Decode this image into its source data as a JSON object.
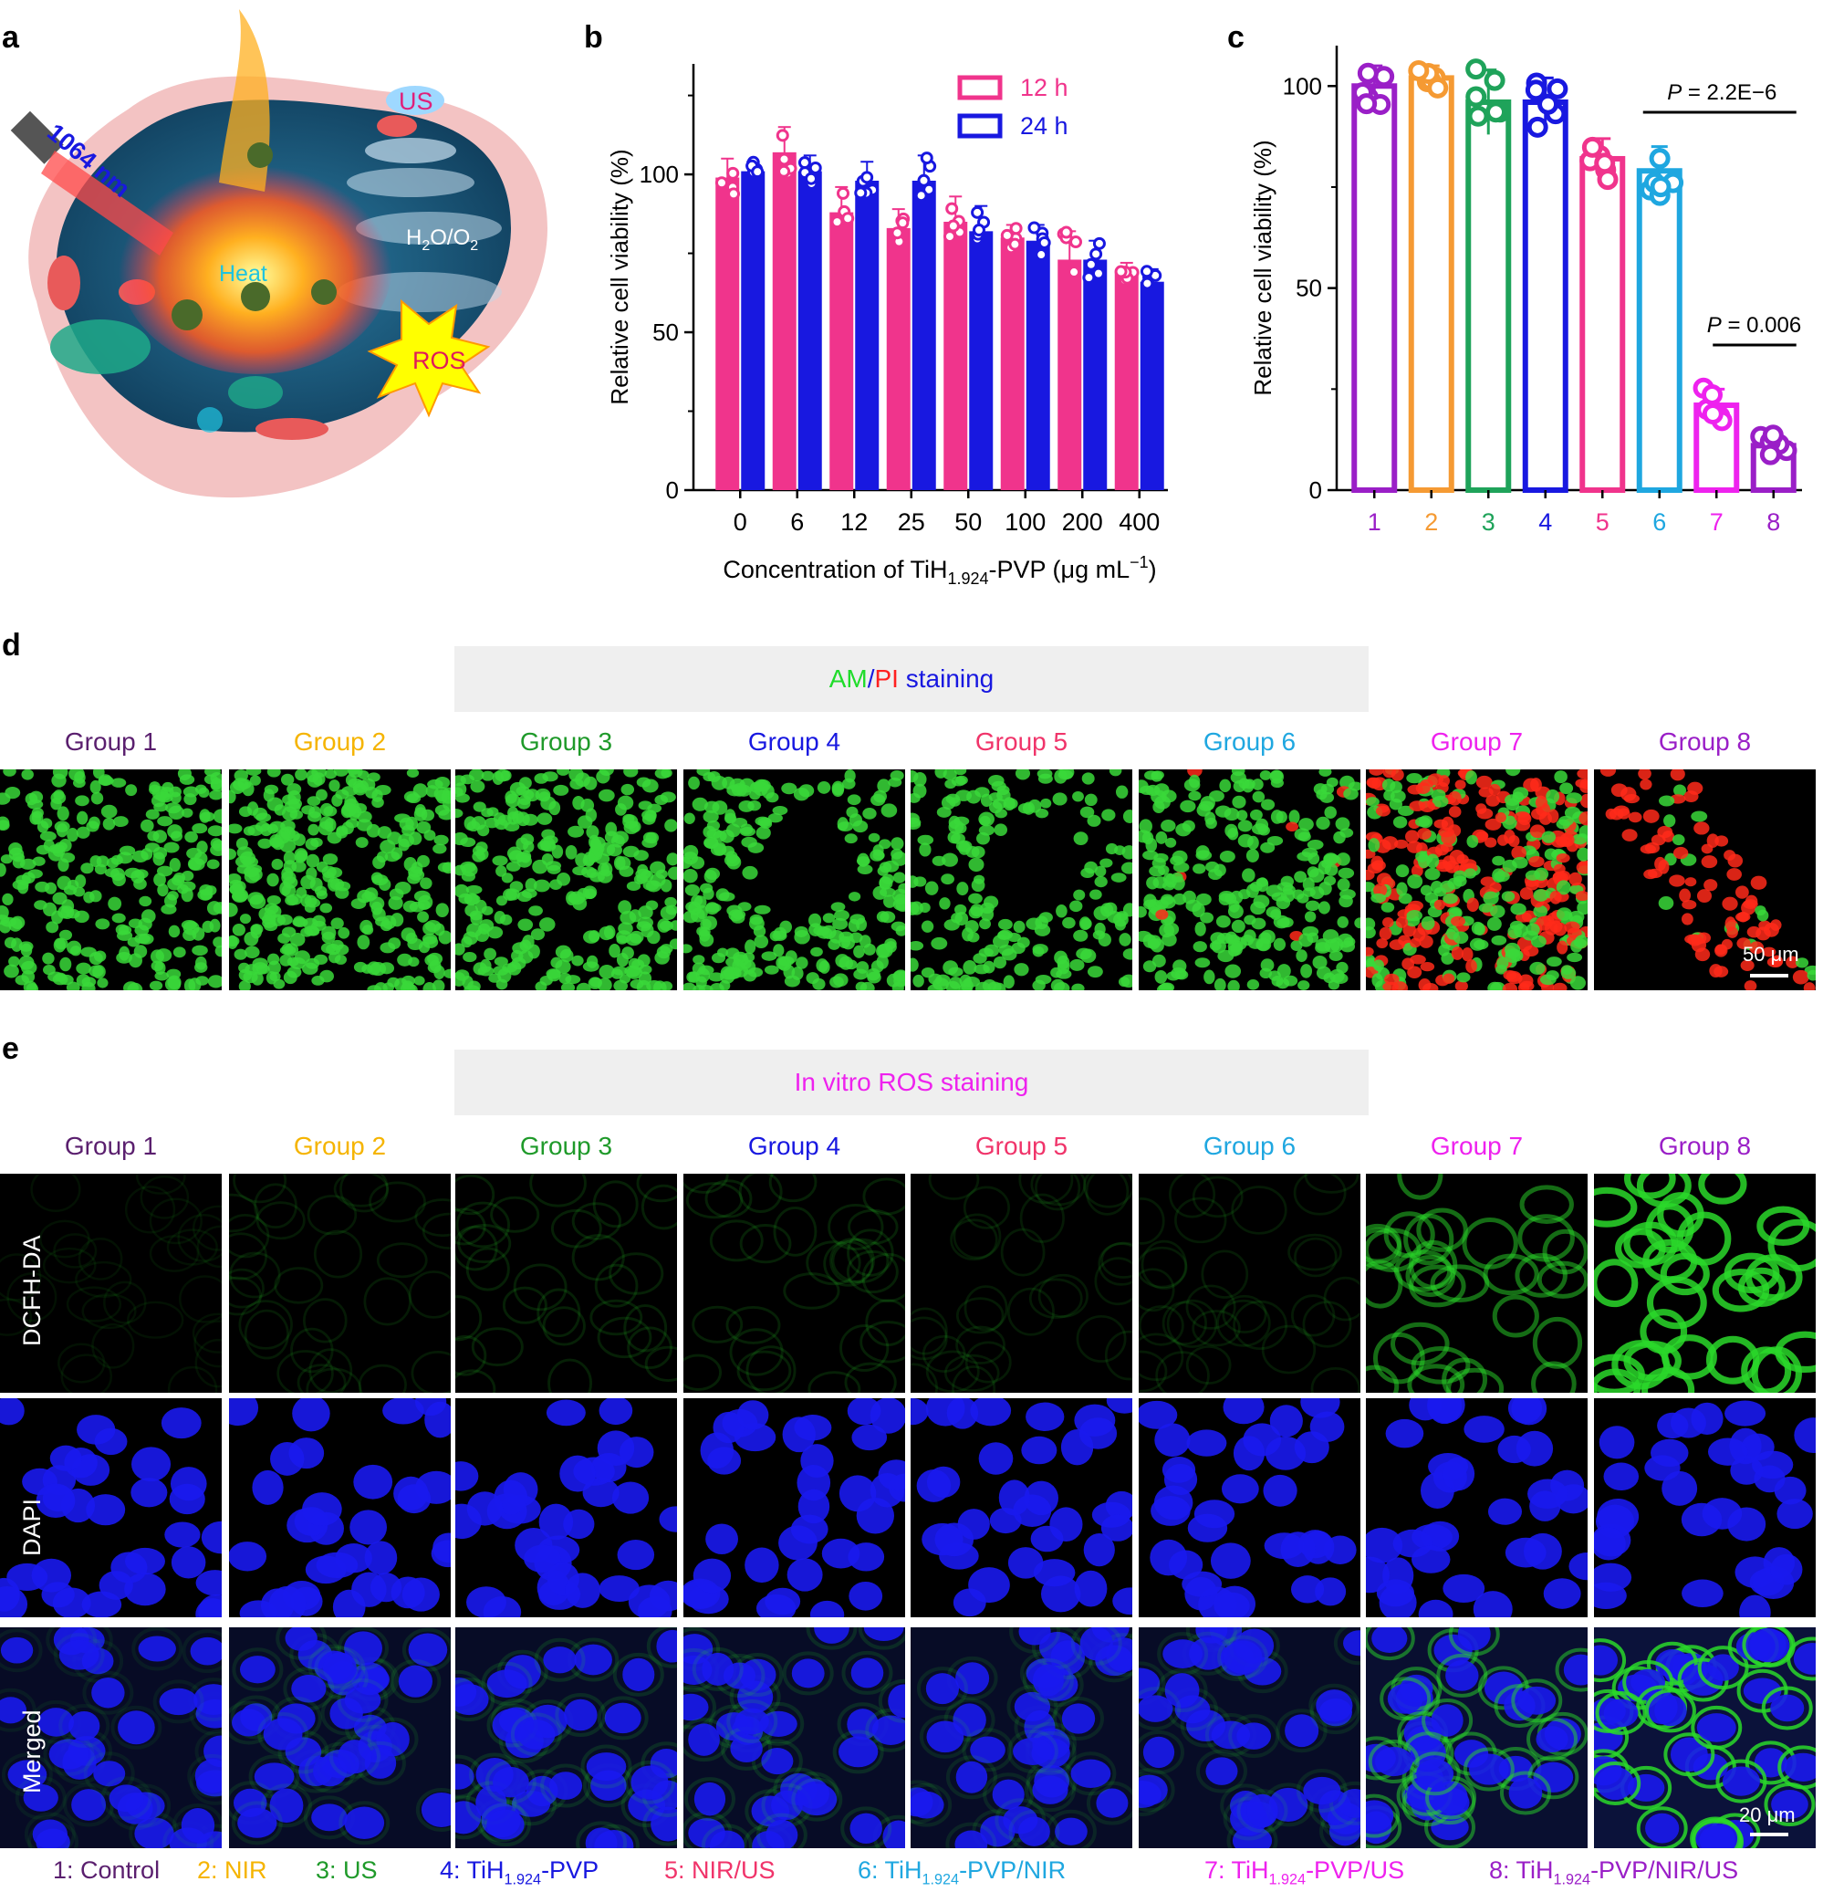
{
  "panels": {
    "a": "a",
    "b": "b",
    "c": "c",
    "d": "d",
    "e": "e"
  },
  "illustration": {
    "labels": {
      "us": "US",
      "laser": "1064 nm",
      "heat": "Heat",
      "h2o": "H",
      "h2o_sub": "2",
      "h2o_rest": "O/O",
      "o2_sub": "2",
      "ros": "ROS"
    }
  },
  "chart_data": [
    {
      "type": "bar",
      "panel": "b",
      "ylabel": "Relative cell viability (%)",
      "xlabel_prefix": "Concentration of TiH",
      "xlabel_sub": "1.924",
      "xlabel_suffix": "-PVP (μg mL",
      "xlabel_sup": "−1",
      "xlabel_end": ")",
      "categories": [
        "0",
        "6",
        "12",
        "25",
        "50",
        "100",
        "200",
        "400"
      ],
      "ylim": [
        0,
        135
      ],
      "yticks": [
        "0",
        "50",
        "100"
      ],
      "series": [
        {
          "name": "12 h",
          "color": "#f0348c",
          "values": [
            99,
            107,
            88,
            83,
            85,
            80,
            73,
            69
          ],
          "errors": [
            6,
            8,
            8,
            6,
            8,
            4,
            9,
            3
          ]
        },
        {
          "name": "24 h",
          "color": "#1818e0",
          "values": [
            101,
            101,
            98,
            98,
            82,
            79,
            73,
            66
          ],
          "errors": [
            3,
            5,
            6,
            8,
            8,
            5,
            6,
            4
          ]
        }
      ],
      "legend_position": "top-right"
    },
    {
      "type": "bar",
      "panel": "c",
      "ylabel": "Relative cell viability (%)",
      "categories": [
        "1",
        "2",
        "3",
        "4",
        "5",
        "6",
        "7",
        "8"
      ],
      "ylim": [
        0,
        110
      ],
      "yticks": [
        "0",
        "50",
        "100"
      ],
      "values": [
        100,
        102,
        96,
        96,
        82,
        79,
        21,
        11
      ],
      "errors": [
        5,
        3,
        8,
        6,
        5,
        6,
        4,
        3
      ],
      "colors": [
        "#9a1fc7",
        "#f59a33",
        "#1fa35a",
        "#1818e0",
        "#f0348c",
        "#1fa7e0",
        "#ee22ee",
        "#9a1fc7"
      ],
      "annotations": [
        {
          "label_italic": "P",
          "label_rest": " = 2.2E−6",
          "between": [
            "6",
            "8"
          ]
        },
        {
          "label_italic": "P",
          "label_rest": " = 0.006",
          "between": [
            "7",
            "8"
          ]
        }
      ]
    }
  ],
  "panel_d": {
    "banner": {
      "am": "AM",
      "slash": "/",
      "pi": "PI",
      "rest": " staining"
    },
    "groups": [
      "Group 1",
      "Group 2",
      "Group 3",
      "Group 4",
      "Group 5",
      "Group 6",
      "Group 7",
      "Group 8"
    ],
    "scale_bar": "50 μm"
  },
  "panel_e": {
    "banner": "In vitro ROS staining",
    "groups": [
      "Group 1",
      "Group 2",
      "Group 3",
      "Group 4",
      "Group 5",
      "Group 6",
      "Group 7",
      "Group 8"
    ],
    "rows": [
      "DCFH-DA",
      "DAPI",
      "Merged"
    ],
    "scale_bar": "20 μm"
  },
  "group_colors": [
    "#5a1f6e",
    "#f5b400",
    "#1f9a2a",
    "#1818e0",
    "#f0346a",
    "#1fa7e0",
    "#ee22ee",
    "#9a1fc7"
  ],
  "legend": [
    {
      "num": "1:",
      "main": " Control",
      "sub": "",
      "tail": ""
    },
    {
      "num": "2:",
      "main": " NIR",
      "sub": "",
      "tail": ""
    },
    {
      "num": "3:",
      "main": " US",
      "sub": "",
      "tail": ""
    },
    {
      "num": "4:",
      "main": " TiH",
      "sub": "1.924",
      "tail": "-PVP"
    },
    {
      "num": "5:",
      "main": " NIR/US",
      "sub": "",
      "tail": ""
    },
    {
      "num": "6:",
      "main": " TiH",
      "sub": "1.924",
      "tail": "-PVP/NIR"
    },
    {
      "num": "7:",
      "main": " TiH",
      "sub": "1.924",
      "tail": "-PVP/US"
    },
    {
      "num": "8:",
      "main": " TiH",
      "sub": "1.924",
      "tail": "-PVP/NIR/US"
    }
  ]
}
